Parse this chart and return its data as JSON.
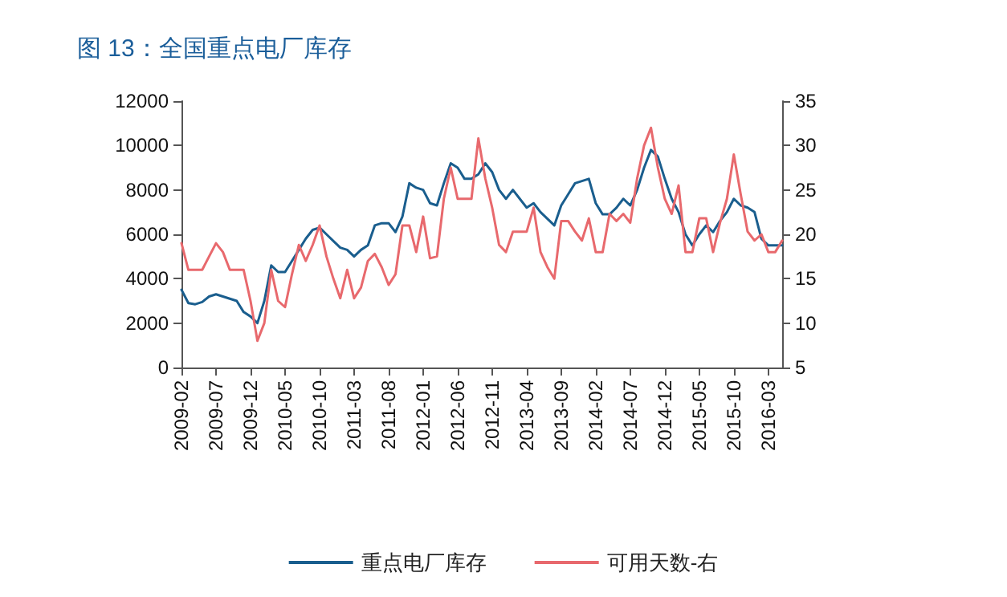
{
  "chart_data": {
    "type": "line",
    "title": "图 13：全国重点电厂库存",
    "categories": [
      "2009-02",
      null,
      null,
      null,
      null,
      "2009-07",
      null,
      null,
      null,
      null,
      "2009-12",
      null,
      null,
      null,
      null,
      "2010-05",
      null,
      null,
      null,
      null,
      "2010-10",
      null,
      null,
      null,
      null,
      "2011-03",
      null,
      null,
      null,
      null,
      "2011-08",
      null,
      null,
      null,
      null,
      "2012-01",
      null,
      null,
      null,
      null,
      "2012-06",
      null,
      null,
      null,
      null,
      "2012-11",
      null,
      null,
      null,
      null,
      "2013-04",
      null,
      null,
      null,
      null,
      "2013-09",
      null,
      null,
      null,
      null,
      "2014-02",
      null,
      null,
      null,
      null,
      "2014-07",
      null,
      null,
      null,
      null,
      "2014-12",
      null,
      null,
      null,
      null,
      "2015-05",
      null,
      null,
      null,
      null,
      "2015-10",
      null,
      null,
      null,
      null,
      "2016-03",
      null,
      null
    ],
    "series": [
      {
        "name": "重点电厂库存",
        "color": "#1a5e8e",
        "values": [
          3500,
          2900,
          2850,
          2950,
          3200,
          3300,
          3200,
          3100,
          3000,
          2500,
          2300,
          2000,
          3000,
          4600,
          4300,
          4300,
          4800,
          5300,
          5800,
          6200,
          6300,
          6000,
          5700,
          5400,
          5300,
          5000,
          5300,
          5500,
          6400,
          6500,
          6500,
          6100,
          6800,
          8300,
          8100,
          8000,
          7400,
          7300,
          8300,
          9200,
          9000,
          8500,
          8500,
          8700,
          9200,
          8800,
          8000,
          7600,
          8000,
          7600,
          7200,
          7400,
          7000,
          6700,
          6400,
          7300,
          7800,
          8300,
          8400,
          8500,
          7400,
          6900,
          6900,
          7200,
          7600,
          7300,
          8000,
          9000,
          9800,
          9500,
          8500,
          7600,
          7000,
          6000,
          5500,
          6000,
          6400,
          6100,
          6600,
          7000,
          7600,
          7300,
          7200,
          7000,
          5800,
          5500,
          5500,
          5500
        ]
      },
      {
        "name": "可用天数-右",
        "color": "#e8696d",
        "axis": "y2",
        "values": [
          19,
          16,
          16,
          16,
          17.5,
          19,
          18,
          16,
          16,
          16,
          12.5,
          8,
          10,
          16,
          12.5,
          11.8,
          15.5,
          18.8,
          17,
          18.8,
          21,
          17.5,
          15,
          12.8,
          16,
          12.8,
          14,
          17,
          17.8,
          16.3,
          14.3,
          15.5,
          21,
          21,
          18,
          22,
          17.3,
          17.5,
          24,
          27.5,
          24,
          24,
          24,
          30.8,
          26.3,
          23,
          18.8,
          18,
          20.3,
          20.3,
          20.3,
          23,
          18,
          16.3,
          15,
          21.5,
          21.5,
          20.3,
          19.3,
          21.8,
          18,
          18,
          22.3,
          21.5,
          22.3,
          21.3,
          26.3,
          30,
          32,
          27.5,
          24,
          22.3,
          25.5,
          18,
          18,
          21.8,
          21.8,
          18,
          21.3,
          24,
          29,
          24.5,
          20.3,
          19.3,
          20,
          18,
          18,
          19.3
        ]
      }
    ],
    "ylim": [
      0,
      12000
    ],
    "yticks": [
      0,
      2000,
      4000,
      6000,
      8000,
      10000,
      12000
    ],
    "y2lim": [
      5,
      35
    ],
    "y2ticks": [
      5,
      10,
      15,
      20,
      25,
      30,
      35
    ],
    "grid": false,
    "legend": "bottom",
    "marker": "none",
    "line_style": "solid"
  }
}
